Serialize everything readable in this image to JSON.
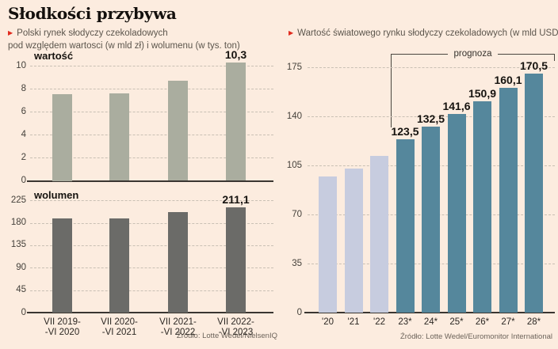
{
  "title": "Słodkości przybywa",
  "left_panel": {
    "bullet": "▶",
    "subtitle_line1": "Polski rynek słodyczy czekoladowych",
    "subtitle_line2": "pod względem wartosci (w mld zł) i wolumenu (w tys. ton)",
    "source": "Źródło: Lotte Wedel/NielsenIQ"
  },
  "right_panel": {
    "bullet": "▶",
    "subtitle": "Wartość światowego rynku słodyczy czekoladowych (w mld USD)",
    "source": "Źródło: Lotte Wedel/Euromonitor International"
  },
  "colors": {
    "background": "#fcecdf",
    "accent_red": "#e12b1e",
    "gridline": "#c9c0b4",
    "axis": "#3a3631",
    "value_bar": "#aaad9f",
    "volume_bar": "#6b6b68",
    "world_actual_bar": "#c7ccdf",
    "world_forecast_bar": "#55879c"
  },
  "chart_data": [
    {
      "id": "value-chart",
      "type": "bar",
      "title": "wartość",
      "categories": [
        "VII 2019--VI 2020",
        "VII 2020--VI 2021",
        "VII 2021--VI 2022",
        "VII 2022--VI 2023"
      ],
      "values": [
        7.5,
        7.6,
        8.7,
        10.3
      ],
      "bar_labels": [
        "",
        "",
        "",
        "10,3"
      ],
      "ylim": [
        0,
        10
      ],
      "yticks": [
        0,
        2,
        4,
        6,
        8,
        10
      ],
      "bar_color": "#aaad9f",
      "grid": "dashed"
    },
    {
      "id": "volume-chart",
      "type": "bar",
      "title": "wolumen",
      "categories": [
        [
          "VII 2019-",
          "-VI 2020"
        ],
        [
          "VII 2020-",
          "-VI 2021"
        ],
        [
          "VII 2021-",
          "-VI 2022"
        ],
        [
          "VII 2022-",
          "-VI 2023"
        ]
      ],
      "values": [
        189,
        189,
        202,
        211.1
      ],
      "bar_labels": [
        "",
        "",
        "",
        "211,1"
      ],
      "ylim": [
        0,
        225
      ],
      "yticks": [
        0,
        45,
        90,
        135,
        180,
        225
      ],
      "bar_color": "#6b6b68",
      "grid": "dashed"
    },
    {
      "id": "world-chart",
      "type": "bar",
      "title": "",
      "annotation": "prognoza",
      "annotation_span": [
        "23*",
        "28*"
      ],
      "categories": [
        "'20",
        "'21",
        "'22",
        "23*",
        "24*",
        "25*",
        "26*",
        "27*",
        "28*"
      ],
      "values": [
        97,
        103,
        112,
        123.5,
        132.5,
        141.6,
        150.9,
        160.1,
        170.5
      ],
      "bar_labels": [
        "",
        "",
        "",
        "123,5",
        "132,5",
        "141,6",
        "150,9",
        "160,1",
        "170,5"
      ],
      "ylim": [
        0,
        175
      ],
      "yticks": [
        0,
        35,
        70,
        105,
        140,
        175
      ],
      "bar_colors": [
        "#c7ccdf",
        "#c7ccdf",
        "#c7ccdf",
        "#55879c",
        "#55879c",
        "#55879c",
        "#55879c",
        "#55879c",
        "#55879c"
      ],
      "grid": "dashed"
    }
  ]
}
